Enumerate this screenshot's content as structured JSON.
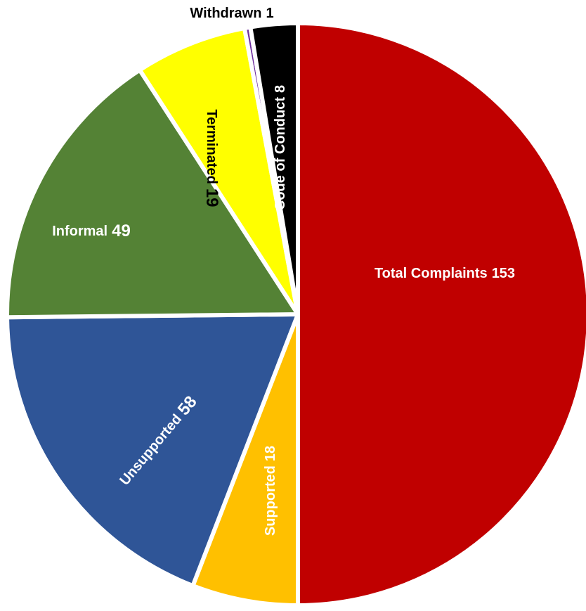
{
  "chart_data": {
    "type": "pie",
    "categories": [
      "Total Complaints",
      "Supported",
      "Unsupported",
      "Informal",
      "Terminated",
      "Withdrawn",
      "Code of Conduct"
    ],
    "values": [
      153,
      18,
      58,
      49,
      19,
      1,
      8
    ],
    "colors": [
      "#c00000",
      "#ffc000",
      "#2f5597",
      "#548235",
      "#ffff00",
      "#7030a0",
      "#000000"
    ]
  }
}
